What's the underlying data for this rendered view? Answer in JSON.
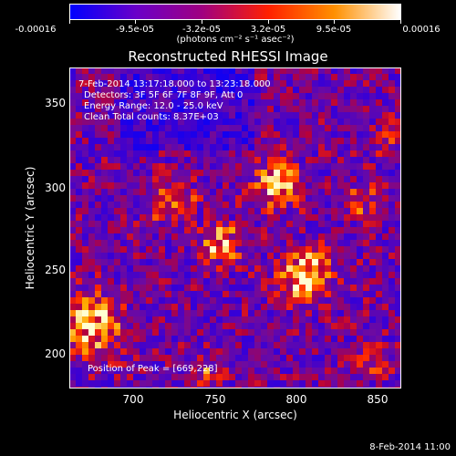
{
  "colorbar": {
    "tick_labels": [
      "-0.00016",
      "-9.5e-05",
      "-3.2e-05",
      "3.2e-05",
      "9.5e-05",
      "0.00016"
    ],
    "units": "(photons cm⁻² s⁻¹ asec⁻²)",
    "colors": [
      "#0000ff",
      "#6a00c8",
      "#a00080",
      "#ff2000",
      "#ff9000",
      "#ffffff"
    ]
  },
  "title": "Reconstructed RHESSI Image",
  "info": {
    "time_range": " 7-Feb-2014 13:17:18.000 to 13:23:18.000",
    "detectors": "Detectors: 3F 5F 6F 7F 8F 9F, Att 0",
    "energy_range": "Energy Range: 12.0 - 25.0 keV",
    "clean_counts": "Clean     Total counts: 8.37E+03",
    "peak_position": "Position of Peak = [669,228]"
  },
  "axes": {
    "xlabel": "Heliocentric X (arcsec)",
    "ylabel": "Heliocentric Y (arcsec)",
    "xticks": [
      "700",
      "750",
      "800",
      "850"
    ],
    "yticks": [
      "350",
      "300",
      "250",
      "200"
    ],
    "xlim": [
      663,
      852
    ],
    "ylim": [
      183,
      370
    ]
  },
  "date_stamp": "8-Feb-2014 11:00"
}
